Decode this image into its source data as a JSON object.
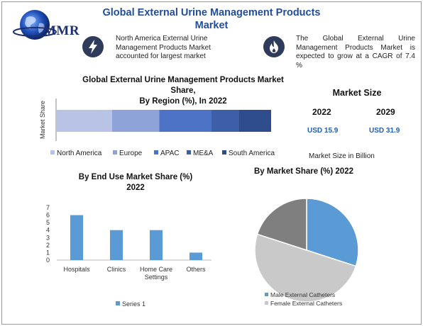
{
  "header": {
    "logo_text": "MMR",
    "title_line1": "Global External Urine Management Products",
    "title_line2": "Market"
  },
  "info": {
    "left_icon": "lightning-bolt-icon",
    "left_lines": [
      "North America External Urine",
      "Management Products Market",
      "accounted for largest market"
    ],
    "right_icon": "flame-icon",
    "right_lines": [
      "The Global External Urine",
      "Management Products Market is",
      "expected to grow at a CAGR of 7.4",
      "%"
    ]
  },
  "market_size": {
    "title": "Market Size",
    "year1": "2022",
    "year2": "2029",
    "value1": "USD 15.9",
    "value2": "USD 31.9",
    "caption": "Market Size in Billion"
  },
  "colors": {
    "north_america": "#b9c3e6",
    "europe": "#8ea3d8",
    "apac": "#4d73c7",
    "mea": "#3d5ea8",
    "south_america": "#2f4d8c",
    "series1": "#5b9bd5",
    "male": "#5b9bd5",
    "female": "#c9c9c9"
  },
  "chart_data": [
    {
      "type": "bar",
      "orientation": "horizontal-stacked",
      "title_lines": [
        "Global External Urine Management Products Market",
        "Share,",
        "By Region (%), In 2022"
      ],
      "ylabel": "Market Share",
      "series": [
        {
          "name": "North America",
          "values": [
            26
          ]
        },
        {
          "name": "Europe",
          "values": [
            22
          ]
        },
        {
          "name": "APAC",
          "values": [
            24
          ]
        },
        {
          "name": "ME&A",
          "values": [
            13
          ]
        },
        {
          "name": "South America",
          "values": [
            15
          ]
        }
      ],
      "legend": "bottom"
    },
    {
      "type": "bar",
      "title_lines": [
        "By End Use Market Share (%)",
        "2022"
      ],
      "categories": [
        "Hospitals",
        "Clinics",
        "Home Care Settings",
        "Others"
      ],
      "category_lines": [
        [
          "Hospitals"
        ],
        [
          "Clinics"
        ],
        [
          "Home Care",
          "Settings"
        ],
        [
          "Others"
        ]
      ],
      "series": [
        {
          "name": "Series 1",
          "values": [
            6,
            4,
            4,
            1
          ]
        }
      ],
      "yticks": [
        "0",
        "1",
        "2",
        "3",
        "4",
        "5",
        "6",
        "7"
      ],
      "ylim": [
        0,
        7
      ],
      "legend": "bottom"
    },
    {
      "type": "pie",
      "title": "By Market Share (%) 2022",
      "slices": [
        {
          "name": "Male External Catheters",
          "value": 30
        },
        {
          "name": "Female External Catheters",
          "value": 50
        },
        {
          "name": "",
          "value": 20,
          "color": "#7f7f7f"
        }
      ],
      "legend": "bottom"
    }
  ]
}
